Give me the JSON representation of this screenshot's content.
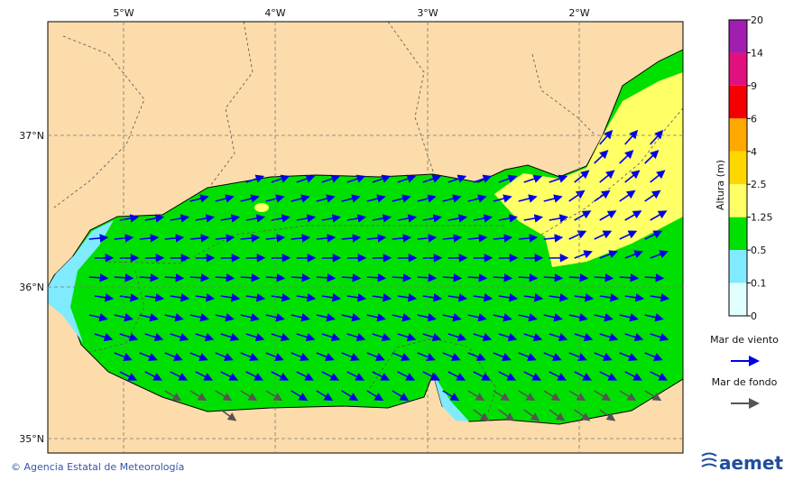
{
  "map": {
    "lon_labels": [
      "5°W",
      "4°W",
      "3°W",
      "2°W"
    ],
    "lat_labels": [
      "37°N",
      "36°N",
      "35°N"
    ]
  },
  "colorbar": {
    "title": "Altura (m)",
    "levels": [
      {
        "label": "20",
        "color": "#a01fb0"
      },
      {
        "label": "14",
        "color": "#e0117f"
      },
      {
        "label": "9",
        "color": "#f50000"
      },
      {
        "label": "6",
        "color": "#ffa800"
      },
      {
        "label": "4",
        "color": "#ffd700"
      },
      {
        "label": "2.5",
        "color": "#ffff66"
      },
      {
        "label": "1.25",
        "color": "#00e000"
      },
      {
        "label": "0.5",
        "color": "#80eaff"
      },
      {
        "label": "0.1",
        "color": "#e0ffff"
      },
      {
        "label": "0",
        "color": null
      }
    ]
  },
  "legend": [
    {
      "label": "Mar de viento",
      "color": "#0000e6"
    },
    {
      "label": "Mar de fondo",
      "color": "#555555"
    }
  ],
  "footer": {
    "credit": "© Agencia Estatal de Meteorología",
    "logo": "aemet"
  }
}
